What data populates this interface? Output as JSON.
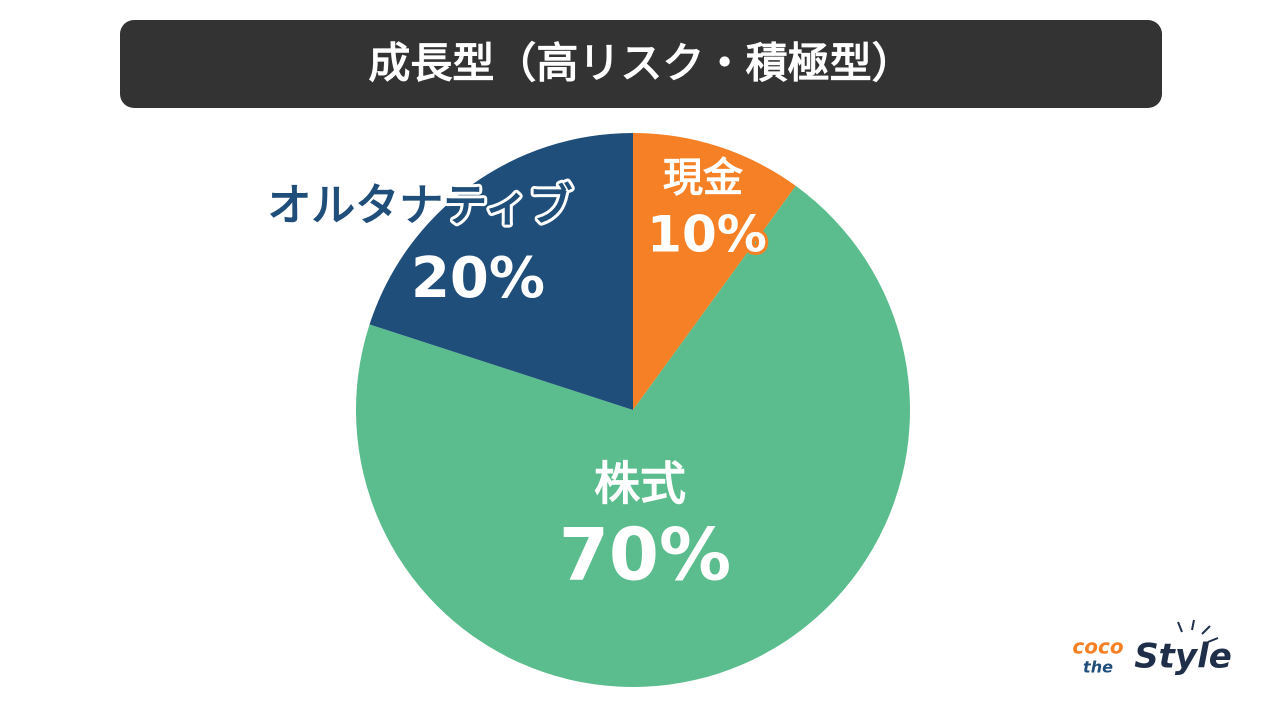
{
  "chart_data": {
    "type": "pie",
    "title": "成長型（高リスク・積極型）",
    "categories": [
      "現金",
      "株式",
      "オルタナティブ"
    ],
    "values": [
      10,
      70,
      20
    ],
    "value_labels": [
      "10%",
      "70%",
      "20%"
    ],
    "colors": [
      "#f58025",
      "#5bbd8d",
      "#1f4e7a"
    ]
  },
  "logo": {
    "line1": "coco",
    "line2": "the",
    "line3": "Style"
  }
}
